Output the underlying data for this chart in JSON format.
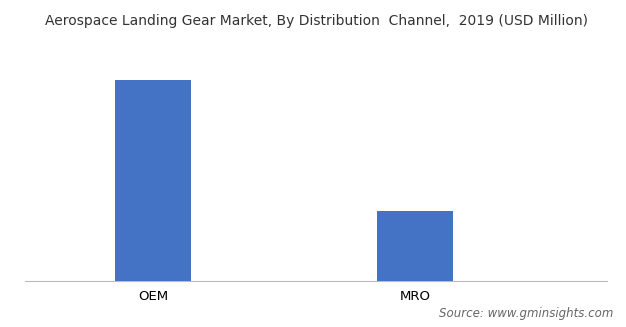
{
  "title": "Aerospace Landing Gear Market, By Distribution  Channel,  2019 (USD Million)",
  "categories": [
    "OEM",
    "MRO"
  ],
  "values": [
    3.0,
    1.05
  ],
  "bar_color": "#4472C4",
  "bar_width": 0.13,
  "bar_positions": [
    0.22,
    0.67
  ],
  "xlim": [
    0,
    1
  ],
  "ylim": [
    0,
    3.6
  ],
  "background_color": "#ffffff",
  "source_text": "Source: www.gminsights.com",
  "title_fontsize": 10,
  "tick_fontsize": 9.5,
  "source_fontsize": 8.5
}
